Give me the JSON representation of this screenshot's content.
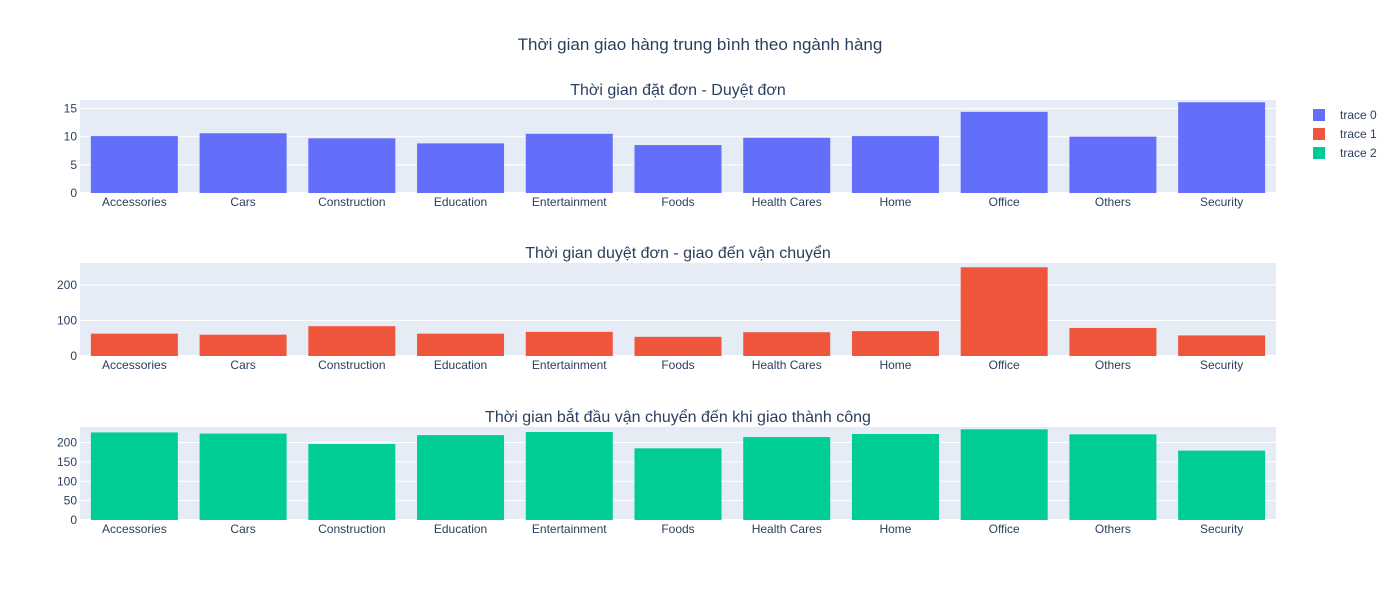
{
  "chart_data": {
    "type": "bar",
    "title": "Thời gian giao hàng trung bình theo ngành hàng",
    "categories": [
      "Accessories",
      "Cars",
      "Construction",
      "Education",
      "Entertainment",
      "Foods",
      "Health Cares",
      "Home",
      "Office",
      "Others",
      "Security"
    ],
    "legend_position": "top-right",
    "grid": true,
    "colors": {
      "plot_bg": "#e5ecf6",
      "grid": "#ffffff",
      "text": "#2a3f5f"
    },
    "subplots": [
      {
        "title": "Thời gian đặt đơn - Duyệt đơn",
        "series_name": "trace 0",
        "color": "#636efa",
        "ylim": [
          0,
          16.5
        ],
        "yticks": [
          0,
          5,
          10,
          15
        ],
        "values": [
          10.1,
          10.6,
          9.7,
          8.8,
          10.5,
          8.5,
          9.8,
          10.1,
          14.4,
          10.0,
          16.1
        ]
      },
      {
        "title": "Thời gian duyệt đơn - giao đến vận chuyển",
        "series_name": "trace 1",
        "color": "#ef553b",
        "ylim": [
          0,
          262
        ],
        "yticks": [
          0,
          100,
          200
        ],
        "values": [
          63,
          60,
          84,
          63,
          68,
          54,
          67,
          70,
          250,
          79,
          58
        ]
      },
      {
        "title": "Thời gian bắt đầu vận chuyển đến khi giao thành công",
        "series_name": "trace 2",
        "color": "#00cc96",
        "ylim": [
          0,
          240
        ],
        "yticks": [
          0,
          50,
          100,
          150,
          200
        ],
        "values": [
          226,
          223,
          196,
          219,
          227,
          185,
          214,
          222,
          234,
          221,
          179
        ]
      }
    ]
  }
}
